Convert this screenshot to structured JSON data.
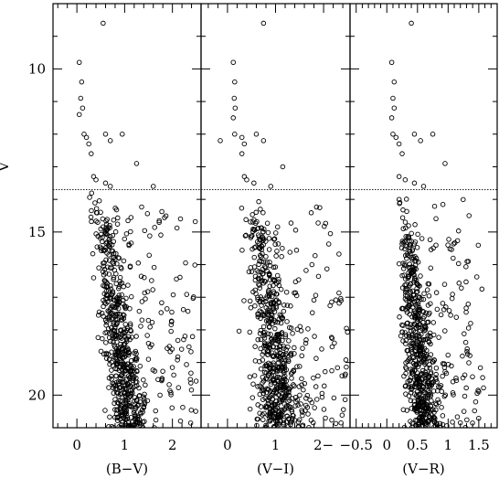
{
  "chart_data": {
    "type": "scatter",
    "y_axis": {
      "label": "V",
      "range": [
        21.0,
        8.0
      ],
      "inverted": true,
      "major_ticks": [
        10,
        15,
        20
      ],
      "tick_labels": [
        "10",
        "15",
        "20"
      ]
    },
    "reference_line": {
      "y": 13.7,
      "style": "dotted"
    },
    "marker": "open-circle",
    "panels": [
      {
        "id": "bv",
        "xlabel": "(B−V)",
        "xlim": [
          -0.5,
          2.6
        ],
        "major_ticks": [
          0,
          1,
          2
        ],
        "tick_labels": [
          "0",
          "1",
          "2"
        ],
        "bright_stars": [
          [
            0.55,
            8.6
          ],
          [
            0.05,
            9.8
          ],
          [
            0.1,
            10.4
          ],
          [
            0.08,
            10.9
          ],
          [
            0.12,
            11.2
          ],
          [
            0.05,
            11.4
          ],
          [
            0.15,
            12.0
          ],
          [
            0.2,
            12.1
          ],
          [
            0.25,
            12.3
          ],
          [
            0.3,
            12.6
          ],
          [
            0.6,
            12.0
          ],
          [
            0.7,
            12.2
          ],
          [
            0.95,
            12.0
          ],
          [
            1.25,
            12.9
          ],
          [
            1.6,
            13.6
          ],
          [
            0.35,
            13.3
          ],
          [
            0.4,
            13.4
          ],
          [
            0.6,
            13.5
          ],
          [
            0.7,
            13.6
          ]
        ],
        "main_sequence": {
          "top_color": 0.35,
          "bottom_color": 1.1,
          "spread": 0.18
        },
        "field_color_range": [
          0.8,
          2.5
        ],
        "seed": 11
      },
      {
        "id": "vi",
        "xlabel": "(V−I)",
        "xlim": [
          -0.55,
          2.55
        ],
        "major_ticks": [
          0,
          1,
          2
        ],
        "tick_labels": [
          "0",
          "1",
          "2−"
        ],
        "bright_stars": [
          [
            0.75,
            8.6
          ],
          [
            0.12,
            9.8
          ],
          [
            0.15,
            10.4
          ],
          [
            0.14,
            10.9
          ],
          [
            0.16,
            11.2
          ],
          [
            0.12,
            11.5
          ],
          [
            -0.15,
            12.2
          ],
          [
            0.15,
            12.0
          ],
          [
            0.3,
            12.1
          ],
          [
            0.35,
            12.3
          ],
          [
            0.3,
            12.6
          ],
          [
            0.6,
            12.0
          ],
          [
            0.75,
            12.2
          ],
          [
            1.15,
            13.0
          ],
          [
            0.35,
            13.3
          ],
          [
            0.4,
            13.4
          ],
          [
            0.55,
            13.5
          ],
          [
            0.9,
            13.6
          ]
        ],
        "main_sequence": {
          "top_color": 0.45,
          "bottom_color": 1.15,
          "spread": 0.2
        },
        "field_color_range": [
          0.8,
          2.5
        ],
        "seed": 23
      },
      {
        "id": "vr",
        "xlabel": "(V−R)",
        "xlim": [
          -0.6,
          1.8
        ],
        "major_ticks": [
          -0.5,
          0,
          0.5,
          1,
          1.5
        ],
        "tick_labels": [
          "−0.5",
          "0",
          "0.5",
          "1",
          "1.5"
        ],
        "bright_stars": [
          [
            0.4,
            8.6
          ],
          [
            0.08,
            9.8
          ],
          [
            0.12,
            10.4
          ],
          [
            0.1,
            10.9
          ],
          [
            0.12,
            11.2
          ],
          [
            0.08,
            11.5
          ],
          [
            0.1,
            12.0
          ],
          [
            0.15,
            12.1
          ],
          [
            0.2,
            12.3
          ],
          [
            0.25,
            12.6
          ],
          [
            0.45,
            12.0
          ],
          [
            0.55,
            12.2
          ],
          [
            0.75,
            12.0
          ],
          [
            0.95,
            12.9
          ],
          [
            0.2,
            13.3
          ],
          [
            0.3,
            13.4
          ],
          [
            0.45,
            13.5
          ],
          [
            0.6,
            13.6
          ]
        ],
        "main_sequence": {
          "top_color": 0.2,
          "bottom_color": 0.6,
          "spread": 0.11
        },
        "field_color_range": [
          0.45,
          1.6
        ],
        "seed": 37
      }
    ]
  }
}
